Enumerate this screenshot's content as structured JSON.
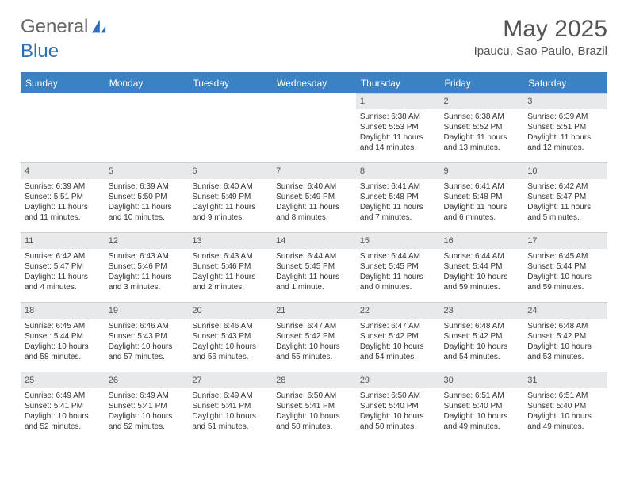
{
  "brand": {
    "left": "General",
    "right": "Blue"
  },
  "month": "May 2025",
  "location": "Ipaucu, Sao Paulo, Brazil",
  "colors": {
    "headerBlue": "#3a82c4",
    "dayHeaderGrey": "#e7e9ea",
    "ruleBlue": "#3a82c4",
    "textGrey": "#555"
  },
  "dayNames": [
    "Sunday",
    "Monday",
    "Tuesday",
    "Wednesday",
    "Thursday",
    "Friday",
    "Saturday"
  ],
  "weeks": [
    [
      null,
      null,
      null,
      null,
      {
        "n": "1",
        "sr": "Sunrise: 6:38 AM",
        "ss": "Sunset: 5:53 PM",
        "d1": "Daylight: 11 hours",
        "d2": "and 14 minutes."
      },
      {
        "n": "2",
        "sr": "Sunrise: 6:38 AM",
        "ss": "Sunset: 5:52 PM",
        "d1": "Daylight: 11 hours",
        "d2": "and 13 minutes."
      },
      {
        "n": "3",
        "sr": "Sunrise: 6:39 AM",
        "ss": "Sunset: 5:51 PM",
        "d1": "Daylight: 11 hours",
        "d2": "and 12 minutes."
      }
    ],
    [
      {
        "n": "4",
        "sr": "Sunrise: 6:39 AM",
        "ss": "Sunset: 5:51 PM",
        "d1": "Daylight: 11 hours",
        "d2": "and 11 minutes."
      },
      {
        "n": "5",
        "sr": "Sunrise: 6:39 AM",
        "ss": "Sunset: 5:50 PM",
        "d1": "Daylight: 11 hours",
        "d2": "and 10 minutes."
      },
      {
        "n": "6",
        "sr": "Sunrise: 6:40 AM",
        "ss": "Sunset: 5:49 PM",
        "d1": "Daylight: 11 hours",
        "d2": "and 9 minutes."
      },
      {
        "n": "7",
        "sr": "Sunrise: 6:40 AM",
        "ss": "Sunset: 5:49 PM",
        "d1": "Daylight: 11 hours",
        "d2": "and 8 minutes."
      },
      {
        "n": "8",
        "sr": "Sunrise: 6:41 AM",
        "ss": "Sunset: 5:48 PM",
        "d1": "Daylight: 11 hours",
        "d2": "and 7 minutes."
      },
      {
        "n": "9",
        "sr": "Sunrise: 6:41 AM",
        "ss": "Sunset: 5:48 PM",
        "d1": "Daylight: 11 hours",
        "d2": "and 6 minutes."
      },
      {
        "n": "10",
        "sr": "Sunrise: 6:42 AM",
        "ss": "Sunset: 5:47 PM",
        "d1": "Daylight: 11 hours",
        "d2": "and 5 minutes."
      }
    ],
    [
      {
        "n": "11",
        "sr": "Sunrise: 6:42 AM",
        "ss": "Sunset: 5:47 PM",
        "d1": "Daylight: 11 hours",
        "d2": "and 4 minutes."
      },
      {
        "n": "12",
        "sr": "Sunrise: 6:43 AM",
        "ss": "Sunset: 5:46 PM",
        "d1": "Daylight: 11 hours",
        "d2": "and 3 minutes."
      },
      {
        "n": "13",
        "sr": "Sunrise: 6:43 AM",
        "ss": "Sunset: 5:46 PM",
        "d1": "Daylight: 11 hours",
        "d2": "and 2 minutes."
      },
      {
        "n": "14",
        "sr": "Sunrise: 6:44 AM",
        "ss": "Sunset: 5:45 PM",
        "d1": "Daylight: 11 hours",
        "d2": "and 1 minute."
      },
      {
        "n": "15",
        "sr": "Sunrise: 6:44 AM",
        "ss": "Sunset: 5:45 PM",
        "d1": "Daylight: 11 hours",
        "d2": "and 0 minutes."
      },
      {
        "n": "16",
        "sr": "Sunrise: 6:44 AM",
        "ss": "Sunset: 5:44 PM",
        "d1": "Daylight: 10 hours",
        "d2": "and 59 minutes."
      },
      {
        "n": "17",
        "sr": "Sunrise: 6:45 AM",
        "ss": "Sunset: 5:44 PM",
        "d1": "Daylight: 10 hours",
        "d2": "and 59 minutes."
      }
    ],
    [
      {
        "n": "18",
        "sr": "Sunrise: 6:45 AM",
        "ss": "Sunset: 5:44 PM",
        "d1": "Daylight: 10 hours",
        "d2": "and 58 minutes."
      },
      {
        "n": "19",
        "sr": "Sunrise: 6:46 AM",
        "ss": "Sunset: 5:43 PM",
        "d1": "Daylight: 10 hours",
        "d2": "and 57 minutes."
      },
      {
        "n": "20",
        "sr": "Sunrise: 6:46 AM",
        "ss": "Sunset: 5:43 PM",
        "d1": "Daylight: 10 hours",
        "d2": "and 56 minutes."
      },
      {
        "n": "21",
        "sr": "Sunrise: 6:47 AM",
        "ss": "Sunset: 5:42 PM",
        "d1": "Daylight: 10 hours",
        "d2": "and 55 minutes."
      },
      {
        "n": "22",
        "sr": "Sunrise: 6:47 AM",
        "ss": "Sunset: 5:42 PM",
        "d1": "Daylight: 10 hours",
        "d2": "and 54 minutes."
      },
      {
        "n": "23",
        "sr": "Sunrise: 6:48 AM",
        "ss": "Sunset: 5:42 PM",
        "d1": "Daylight: 10 hours",
        "d2": "and 54 minutes."
      },
      {
        "n": "24",
        "sr": "Sunrise: 6:48 AM",
        "ss": "Sunset: 5:42 PM",
        "d1": "Daylight: 10 hours",
        "d2": "and 53 minutes."
      }
    ],
    [
      {
        "n": "25",
        "sr": "Sunrise: 6:49 AM",
        "ss": "Sunset: 5:41 PM",
        "d1": "Daylight: 10 hours",
        "d2": "and 52 minutes."
      },
      {
        "n": "26",
        "sr": "Sunrise: 6:49 AM",
        "ss": "Sunset: 5:41 PM",
        "d1": "Daylight: 10 hours",
        "d2": "and 52 minutes."
      },
      {
        "n": "27",
        "sr": "Sunrise: 6:49 AM",
        "ss": "Sunset: 5:41 PM",
        "d1": "Daylight: 10 hours",
        "d2": "and 51 minutes."
      },
      {
        "n": "28",
        "sr": "Sunrise: 6:50 AM",
        "ss": "Sunset: 5:41 PM",
        "d1": "Daylight: 10 hours",
        "d2": "and 50 minutes."
      },
      {
        "n": "29",
        "sr": "Sunrise: 6:50 AM",
        "ss": "Sunset: 5:40 PM",
        "d1": "Daylight: 10 hours",
        "d2": "and 50 minutes."
      },
      {
        "n": "30",
        "sr": "Sunrise: 6:51 AM",
        "ss": "Sunset: 5:40 PM",
        "d1": "Daylight: 10 hours",
        "d2": "and 49 minutes."
      },
      {
        "n": "31",
        "sr": "Sunrise: 6:51 AM",
        "ss": "Sunset: 5:40 PM",
        "d1": "Daylight: 10 hours",
        "d2": "and 49 minutes."
      }
    ]
  ]
}
